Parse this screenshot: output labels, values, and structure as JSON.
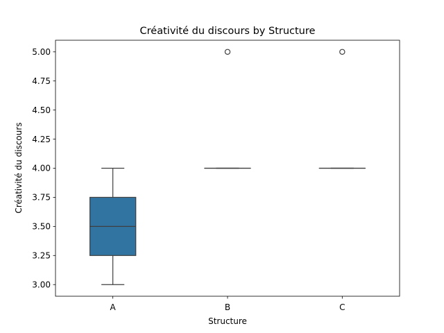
{
  "chart_data": {
    "type": "box",
    "title": "Créativité du discours by Structure",
    "xlabel": "Structure",
    "ylabel": "Créativité du discours",
    "categories": [
      "A",
      "B",
      "C"
    ],
    "ylim": [
      2.9,
      5.1
    ],
    "yticks": [
      3.0,
      3.25,
      3.5,
      3.75,
      4.0,
      4.25,
      4.5,
      4.75,
      5.0
    ],
    "ytick_labels": [
      "3.00",
      "3.25",
      "3.50",
      "3.75",
      "4.00",
      "4.25",
      "4.50",
      "4.75",
      "5.00"
    ],
    "grid": false,
    "legend": "none",
    "box_color": "#3274a1",
    "boxes": [
      {
        "category": "A",
        "whisker_low": 3.0,
        "q1": 3.25,
        "median": 3.5,
        "q3": 3.75,
        "whisker_high": 4.0,
        "outliers": []
      },
      {
        "category": "B",
        "whisker_low": 4.0,
        "q1": 4.0,
        "median": 4.0,
        "q3": 4.0,
        "whisker_high": 4.0,
        "outliers": [
          5.0
        ]
      },
      {
        "category": "C",
        "whisker_low": 4.0,
        "q1": 4.0,
        "median": 4.0,
        "q3": 4.0,
        "whisker_high": 4.0,
        "outliers": [
          5.0
        ]
      }
    ]
  }
}
